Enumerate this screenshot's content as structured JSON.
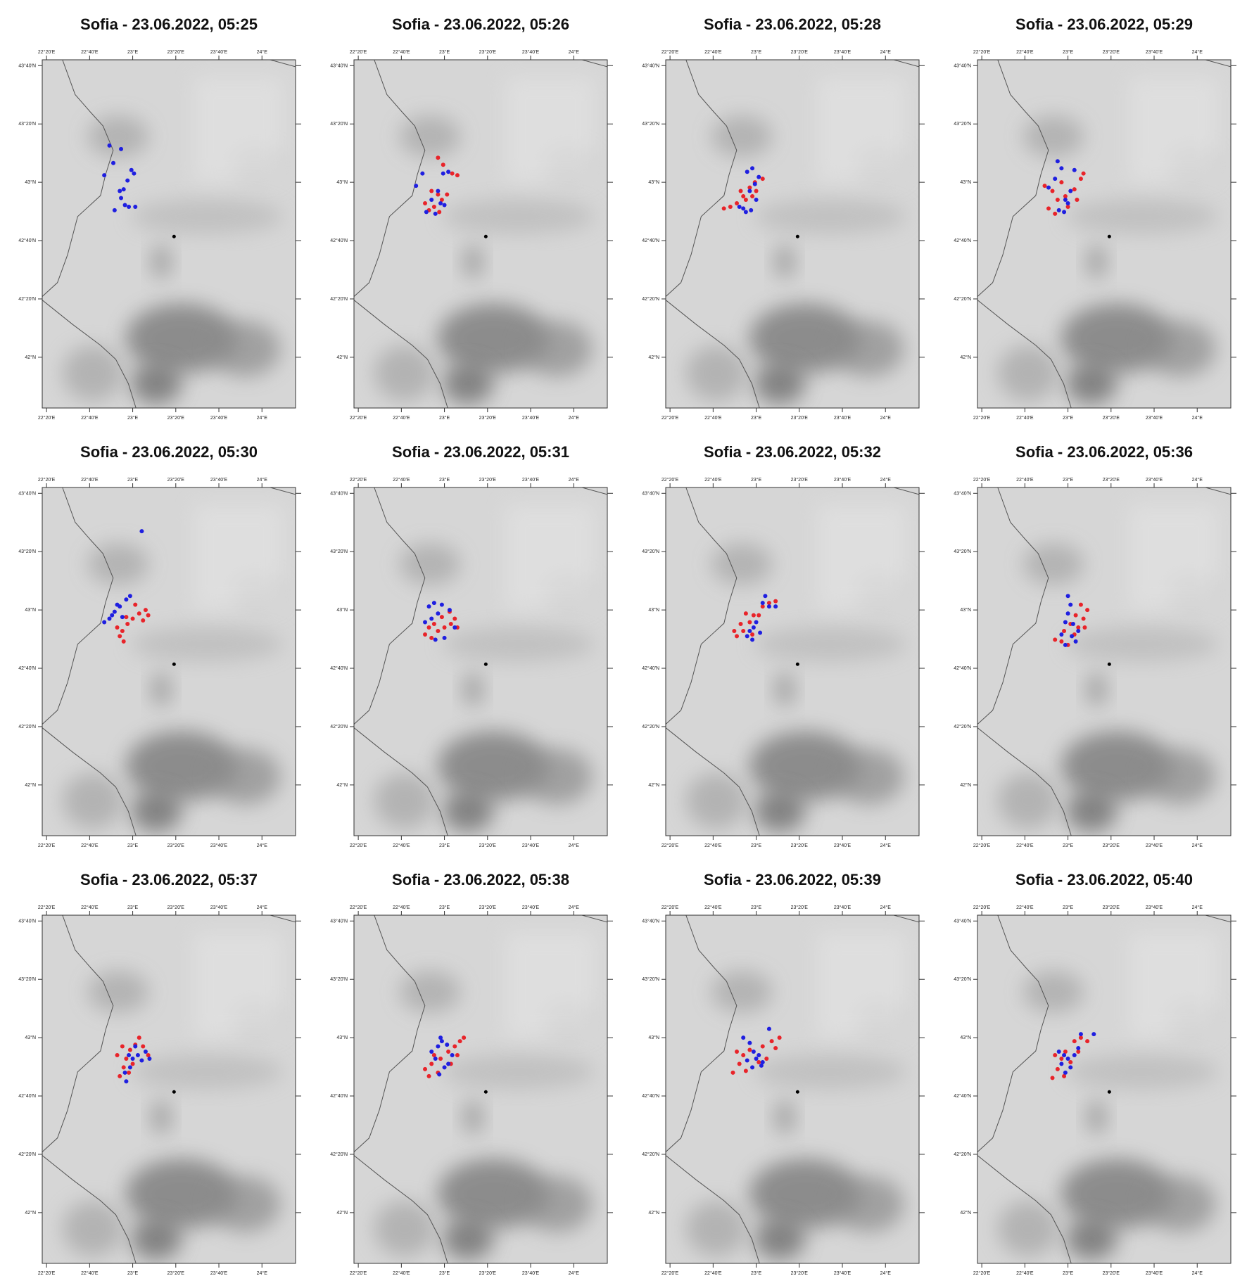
{
  "xlim": [
    22.3,
    24.26
  ],
  "ylim": [
    41.71,
    43.7
  ],
  "xticks": [
    {
      "value": 22.3333,
      "label": "22°20'E"
    },
    {
      "value": 22.6667,
      "label": "22°40'E"
    },
    {
      "value": 23,
      "label": "23°E"
    },
    {
      "value": 23.3333,
      "label": "23°20'E"
    },
    {
      "value": 23.6667,
      "label": "23°40'E"
    },
    {
      "value": 24,
      "label": "24°E"
    }
  ],
  "yticks": [
    {
      "value": 42,
      "label": "42°N"
    },
    {
      "value": 42.3333,
      "label": "42°20'N"
    },
    {
      "value": 42.6667,
      "label": "42°40'N"
    },
    {
      "value": 43,
      "label": "43°N"
    },
    {
      "value": 43.3333,
      "label": "43°20'N"
    },
    {
      "value": 43.6667,
      "label": "43°40'N"
    }
  ],
  "station": [
    23.32,
    42.69
  ],
  "colors": {
    "red": "#e8242a",
    "blue": "#1f1fe0",
    "station": "#000000"
  },
  "panels": [
    {
      "title": "Sofia - 23.06.2022, 05:25",
      "red": [],
      "blue": [
        [
          22.82,
          43.21
        ],
        [
          22.91,
          43.19
        ],
        [
          22.85,
          43.11
        ],
        [
          22.78,
          43.04
        ],
        [
          22.99,
          43.07
        ],
        [
          23.01,
          43.05
        ],
        [
          22.96,
          43.01
        ],
        [
          22.93,
          42.96
        ],
        [
          22.91,
          42.91
        ],
        [
          22.94,
          42.87
        ],
        [
          22.86,
          42.84
        ],
        [
          22.97,
          42.86
        ],
        [
          23.02,
          42.86
        ],
        [
          22.9,
          42.95
        ]
      ]
    },
    {
      "title": "Sofia - 23.06.2022, 05:26",
      "red": [
        [
          22.95,
          43.14
        ],
        [
          22.99,
          43.1
        ],
        [
          23.06,
          43.05
        ],
        [
          22.9,
          42.95
        ],
        [
          22.95,
          42.93
        ],
        [
          22.85,
          42.88
        ],
        [
          22.92,
          42.86
        ],
        [
          22.98,
          42.9
        ],
        [
          23.02,
          42.93
        ],
        [
          22.88,
          42.84
        ],
        [
          22.96,
          42.83
        ],
        [
          23.1,
          43.04
        ]
      ],
      "blue": [
        [
          22.78,
          42.98
        ],
        [
          22.83,
          43.05
        ],
        [
          22.99,
          43.05
        ],
        [
          23.03,
          43.06
        ],
        [
          22.95,
          42.95
        ],
        [
          22.9,
          42.9
        ],
        [
          22.97,
          42.88
        ],
        [
          22.93,
          42.82
        ],
        [
          22.86,
          42.83
        ],
        [
          23.0,
          42.87
        ]
      ]
    },
    {
      "title": "Sofia - 23.06.2022, 05:28",
      "red": [
        [
          22.85,
          42.88
        ],
        [
          22.9,
          42.92
        ],
        [
          22.95,
          42.97
        ],
        [
          22.99,
          43.0
        ],
        [
          22.8,
          42.86
        ],
        [
          22.75,
          42.85
        ],
        [
          22.92,
          42.9
        ],
        [
          23.0,
          42.95
        ],
        [
          23.05,
          43.02
        ],
        [
          22.88,
          42.95
        ],
        [
          22.97,
          42.92
        ]
      ],
      "blue": [
        [
          22.93,
          43.06
        ],
        [
          22.97,
          43.08
        ],
        [
          23.02,
          43.03
        ],
        [
          22.95,
          42.95
        ],
        [
          22.9,
          42.85
        ],
        [
          22.96,
          42.84
        ],
        [
          23.0,
          42.9
        ],
        [
          22.87,
          42.86
        ],
        [
          22.99,
          42.99
        ],
        [
          22.92,
          42.83
        ]
      ]
    },
    {
      "title": "Sofia - 23.06.2022, 05:29",
      "red": [
        [
          22.82,
          42.98
        ],
        [
          22.88,
          42.95
        ],
        [
          22.92,
          42.9
        ],
        [
          22.98,
          42.92
        ],
        [
          23.05,
          42.96
        ],
        [
          23.1,
          43.02
        ],
        [
          22.85,
          42.85
        ],
        [
          22.9,
          42.82
        ],
        [
          23.0,
          42.86
        ],
        [
          23.07,
          42.9
        ],
        [
          22.95,
          43.0
        ],
        [
          23.12,
          43.05
        ]
      ],
      "blue": [
        [
          22.92,
          43.12
        ],
        [
          22.95,
          43.08
        ],
        [
          22.9,
          43.02
        ],
        [
          22.98,
          42.9
        ],
        [
          23.0,
          42.88
        ],
        [
          23.02,
          42.95
        ],
        [
          22.93,
          42.84
        ],
        [
          22.97,
          42.83
        ],
        [
          22.85,
          42.97
        ],
        [
          23.05,
          43.07
        ]
      ]
    },
    {
      "title": "Sofia - 23.06.2022, 05:30",
      "red": [
        [
          22.9,
          42.85
        ],
        [
          22.92,
          42.88
        ],
        [
          22.96,
          42.92
        ],
        [
          23.0,
          42.95
        ],
        [
          23.05,
          42.98
        ],
        [
          23.1,
          43.0
        ],
        [
          22.95,
          42.96
        ],
        [
          22.88,
          42.9
        ],
        [
          23.08,
          42.94
        ],
        [
          23.02,
          43.03
        ],
        [
          22.93,
          42.82
        ],
        [
          23.12,
          42.97
        ]
      ],
      "blue": [
        [
          23.07,
          43.45
        ],
        [
          22.78,
          42.93
        ],
        [
          22.82,
          42.95
        ],
        [
          22.86,
          42.99
        ],
        [
          22.9,
          43.02
        ],
        [
          22.95,
          43.06
        ],
        [
          22.98,
          43.08
        ],
        [
          22.84,
          42.97
        ],
        [
          22.92,
          42.96
        ],
        [
          22.88,
          43.03
        ]
      ]
    },
    {
      "title": "Sofia - 23.06.2022, 05:31",
      "red": [
        [
          22.85,
          42.86
        ],
        [
          22.9,
          42.84
        ],
        [
          22.95,
          42.88
        ],
        [
          23.0,
          42.9
        ],
        [
          23.05,
          42.92
        ],
        [
          23.08,
          42.95
        ],
        [
          22.92,
          42.92
        ],
        [
          22.98,
          42.96
        ],
        [
          23.04,
          42.99
        ],
        [
          22.88,
          42.9
        ],
        [
          23.1,
          42.9
        ]
      ],
      "blue": [
        [
          22.88,
          43.02
        ],
        [
          22.92,
          43.04
        ],
        [
          22.98,
          43.03
        ],
        [
          23.04,
          43.0
        ],
        [
          22.9,
          42.95
        ],
        [
          22.85,
          42.93
        ],
        [
          23.08,
          42.9
        ],
        [
          22.93,
          42.83
        ],
        [
          23.0,
          42.84
        ],
        [
          22.95,
          42.98
        ]
      ]
    },
    {
      "title": "Sofia - 23.06.2022, 05:32",
      "red": [
        [
          22.85,
          42.85
        ],
        [
          22.9,
          42.88
        ],
        [
          22.95,
          42.93
        ],
        [
          22.98,
          42.97
        ],
        [
          23.05,
          43.02
        ],
        [
          23.1,
          43.04
        ],
        [
          22.92,
          42.98
        ],
        [
          22.88,
          42.92
        ],
        [
          23.02,
          42.97
        ],
        [
          23.15,
          43.05
        ],
        [
          22.83,
          42.88
        ],
        [
          22.97,
          42.86
        ]
      ],
      "blue": [
        [
          23.07,
          43.08
        ],
        [
          23.1,
          43.02
        ],
        [
          23.15,
          43.02
        ],
        [
          22.95,
          42.88
        ],
        [
          22.98,
          42.9
        ],
        [
          23.0,
          42.93
        ],
        [
          22.93,
          42.85
        ],
        [
          22.97,
          42.83
        ],
        [
          23.03,
          42.87
        ],
        [
          23.05,
          43.04
        ]
      ]
    },
    {
      "title": "Sofia - 23.06.2022, 05:36",
      "red": [
        [
          23.0,
          42.8
        ],
        [
          22.95,
          42.82
        ],
        [
          22.9,
          42.83
        ],
        [
          23.05,
          42.86
        ],
        [
          23.08,
          42.9
        ],
        [
          23.12,
          42.95
        ],
        [
          23.15,
          43.0
        ],
        [
          23.1,
          43.03
        ],
        [
          23.02,
          42.92
        ],
        [
          23.06,
          42.97
        ],
        [
          22.97,
          42.88
        ],
        [
          23.13,
          42.9
        ]
      ],
      "blue": [
        [
          23.0,
          43.08
        ],
        [
          23.02,
          43.03
        ],
        [
          23.0,
          42.98
        ],
        [
          22.98,
          42.93
        ],
        [
          23.03,
          42.85
        ],
        [
          23.06,
          42.82
        ],
        [
          22.98,
          42.8
        ],
        [
          23.08,
          42.88
        ],
        [
          22.95,
          42.86
        ],
        [
          23.04,
          42.92
        ]
      ]
    },
    {
      "title": "Sofia - 23.06.2022, 05:37",
      "red": [
        [
          22.9,
          42.78
        ],
        [
          22.93,
          42.83
        ],
        [
          22.95,
          42.88
        ],
        [
          22.98,
          42.93
        ],
        [
          23.02,
          42.96
        ],
        [
          23.05,
          43.0
        ],
        [
          23.08,
          42.95
        ],
        [
          22.88,
          42.9
        ],
        [
          22.97,
          42.8
        ],
        [
          23.12,
          42.9
        ],
        [
          22.92,
          42.95
        ],
        [
          23.0,
          42.85
        ]
      ],
      "blue": [
        [
          22.97,
          42.9
        ],
        [
          23.0,
          42.88
        ],
        [
          23.04,
          42.9
        ],
        [
          23.07,
          42.87
        ],
        [
          22.98,
          42.83
        ],
        [
          22.94,
          42.8
        ],
        [
          23.1,
          42.92
        ],
        [
          23.02,
          42.95
        ],
        [
          22.95,
          42.75
        ],
        [
          23.13,
          42.88
        ]
      ]
    },
    {
      "title": "Sofia - 23.06.2022, 05:38",
      "red": [
        [
          22.85,
          42.82
        ],
        [
          22.9,
          42.85
        ],
        [
          22.97,
          42.88
        ],
        [
          23.03,
          42.92
        ],
        [
          23.08,
          42.95
        ],
        [
          23.12,
          42.98
        ],
        [
          22.95,
          42.8
        ],
        [
          23.05,
          42.85
        ],
        [
          23.15,
          43.0
        ],
        [
          22.92,
          42.9
        ],
        [
          23.1,
          42.9
        ],
        [
          22.88,
          42.78
        ]
      ],
      "blue": [
        [
          22.95,
          42.95
        ],
        [
          22.98,
          42.98
        ],
        [
          23.02,
          42.96
        ],
        [
          22.97,
          43.0
        ],
        [
          22.93,
          42.88
        ],
        [
          23.0,
          42.83
        ],
        [
          23.03,
          42.85
        ],
        [
          22.96,
          42.79
        ],
        [
          22.9,
          42.92
        ],
        [
          23.06,
          42.9
        ]
      ]
    },
    {
      "title": "Sofia - 23.06.2022, 05:39",
      "red": [
        [
          22.82,
          42.8
        ],
        [
          22.87,
          42.85
        ],
        [
          22.9,
          42.9
        ],
        [
          22.95,
          42.93
        ],
        [
          23.05,
          42.95
        ],
        [
          23.12,
          42.98
        ],
        [
          23.18,
          43.0
        ],
        [
          22.85,
          42.92
        ],
        [
          23.08,
          42.88
        ],
        [
          22.92,
          42.81
        ],
        [
          23.02,
          42.86
        ],
        [
          23.15,
          42.94
        ]
      ],
      "blue": [
        [
          22.9,
          43.0
        ],
        [
          22.95,
          42.97
        ],
        [
          22.98,
          42.92
        ],
        [
          23.02,
          42.9
        ],
        [
          23.05,
          42.86
        ],
        [
          22.97,
          42.83
        ],
        [
          23.0,
          42.88
        ],
        [
          22.93,
          42.87
        ],
        [
          23.1,
          43.05
        ],
        [
          23.04,
          42.84
        ]
      ]
    },
    {
      "title": "Sofia - 23.06.2022, 05:40",
      "red": [
        [
          22.88,
          42.77
        ],
        [
          22.92,
          42.82
        ],
        [
          22.95,
          42.88
        ],
        [
          22.98,
          42.92
        ],
        [
          23.05,
          42.98
        ],
        [
          23.1,
          43.0
        ],
        [
          23.02,
          42.86
        ],
        [
          22.9,
          42.9
        ],
        [
          23.08,
          42.92
        ],
        [
          22.97,
          42.78
        ],
        [
          23.15,
          42.98
        ]
      ],
      "blue": [
        [
          22.93,
          42.92
        ],
        [
          22.97,
          42.9
        ],
        [
          23.0,
          42.88
        ],
        [
          23.05,
          42.9
        ],
        [
          23.08,
          42.94
        ],
        [
          23.02,
          42.83
        ],
        [
          22.98,
          42.8
        ],
        [
          23.1,
          43.02
        ],
        [
          23.2,
          43.02
        ],
        [
          22.95,
          42.85
        ]
      ]
    }
  ]
}
